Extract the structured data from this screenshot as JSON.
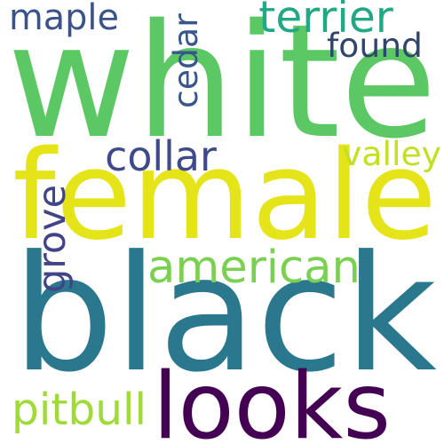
{
  "words": [
    {
      "key": "white",
      "text": "white",
      "color": "#5cc863"
    },
    {
      "key": "female",
      "text": "female",
      "color": "#e4e419"
    },
    {
      "key": "black",
      "text": "black",
      "color": "#2a788e"
    },
    {
      "key": "looks",
      "text": "looks",
      "color": "#440154"
    },
    {
      "key": "american",
      "text": "american",
      "color": "#7ad151"
    },
    {
      "key": "terrier",
      "text": "terrier",
      "color": "#22a884"
    },
    {
      "key": "found",
      "text": "found",
      "color": "#31446b"
    },
    {
      "key": "maple",
      "text": "maple",
      "color": "#3b528b"
    },
    {
      "key": "cedar",
      "text": "cedar",
      "color": "#39568c"
    },
    {
      "key": "collar",
      "text": "collar",
      "color": "#3e4a89"
    },
    {
      "key": "valley",
      "text": "valley",
      "color": "#c2df23"
    },
    {
      "key": "grove",
      "text": "grove",
      "color": "#414487"
    },
    {
      "key": "pitbull",
      "text": "pitbull",
      "color": "#a0da39"
    }
  ]
}
